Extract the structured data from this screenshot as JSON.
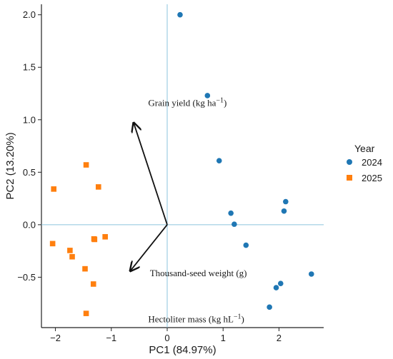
{
  "chart_data": {
    "type": "scatter",
    "xlabel": "PC1 (84.97%)",
    "ylabel": "PC2 (13.20%)",
    "xlim": [
      -2.25,
      2.8
    ],
    "ylim": [
      -0.98,
      2.1
    ],
    "x_ticks": [
      -2,
      -1,
      0,
      1,
      2
    ],
    "y_ticks": [
      -0.5,
      0.0,
      0.5,
      1.0,
      1.5,
      2.0
    ],
    "x_tick_labels": [
      "−2",
      "−1",
      "0",
      "1",
      "2"
    ],
    "y_tick_labels": [
      "−0.5",
      "0.0",
      "0.5",
      "1.0",
      "1.5",
      "2.0"
    ],
    "grid": false,
    "reference_lines": {
      "x": 0,
      "y": 0,
      "color": "#8cc4de"
    },
    "legend": {
      "title": "Year",
      "placement": "right",
      "entries": [
        {
          "label": "2024",
          "marker": "circle",
          "color": "#1f77b4"
        },
        {
          "label": "2025",
          "marker": "square",
          "color": "#ff7f0e"
        }
      ]
    },
    "series": [
      {
        "name": "2024",
        "marker": "circle",
        "color": "#1f77b4",
        "points": [
          [
            0.23,
            2.0
          ],
          [
            0.72,
            1.23
          ],
          [
            0.93,
            0.61
          ],
          [
            2.12,
            0.22
          ],
          [
            1.14,
            0.11
          ],
          [
            2.09,
            0.13
          ],
          [
            1.2,
            0.005
          ],
          [
            1.41,
            -0.195
          ],
          [
            2.58,
            -0.47
          ],
          [
            2.03,
            -0.56
          ],
          [
            1.95,
            -0.6
          ],
          [
            1.83,
            -0.785
          ]
        ]
      },
      {
        "name": "2025",
        "marker": "square",
        "color": "#ff7f0e",
        "points": [
          [
            -1.45,
            0.57
          ],
          [
            -2.03,
            0.34
          ],
          [
            -1.23,
            0.36
          ],
          [
            -1.11,
            -0.115
          ],
          [
            -1.31,
            -0.135
          ],
          [
            -1.3,
            -0.14
          ],
          [
            -2.05,
            -0.18
          ],
          [
            -1.74,
            -0.245
          ],
          [
            -1.7,
            -0.305
          ],
          [
            -1.47,
            -0.42
          ],
          [
            -1.32,
            -0.565
          ],
          [
            -1.45,
            -0.845
          ]
        ]
      }
    ],
    "loadings": [
      {
        "label": "Grain yield (kg ha",
        "sup": "−1",
        "label_end": ")",
        "x": -0.6,
        "y": 0.97,
        "label_x": -0.34,
        "label_y": 1.13
      },
      {
        "label": "Thousand-seed weight (g)",
        "sup": "",
        "label_end": "",
        "x": -0.66,
        "y": -0.44,
        "label_x": -0.31,
        "label_y": -0.49
      },
      {
        "label": "Hectoliter mass (kg hL",
        "sup": "−1",
        "label_end": ")",
        "x": -0.66,
        "y": -0.44,
        "label_x": -0.34,
        "label_y": -0.93
      }
    ]
  }
}
